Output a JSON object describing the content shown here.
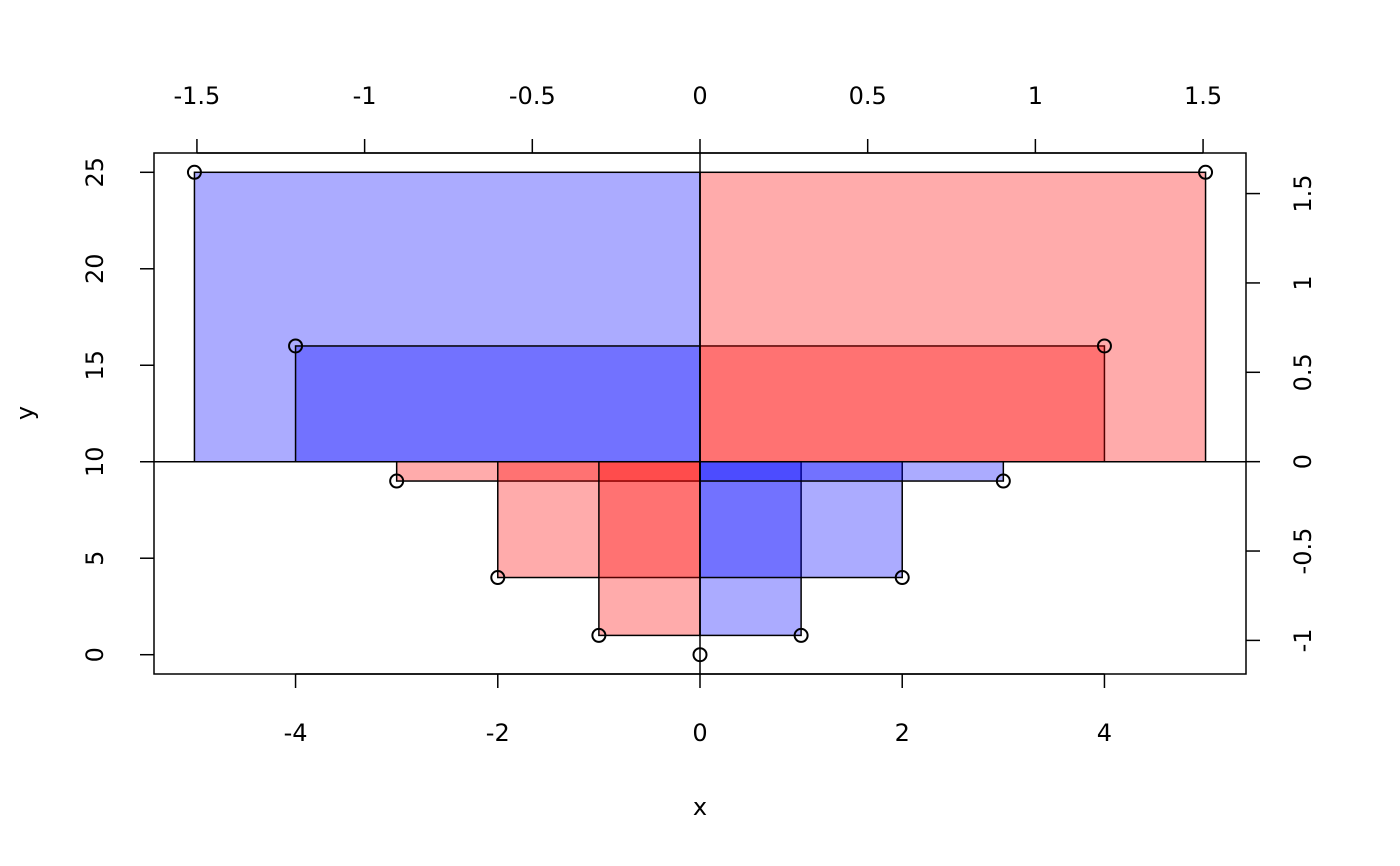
{
  "chart_data": {
    "type": "scatter",
    "x": [
      -5,
      -4,
      -3,
      -2,
      -1,
      0,
      1,
      2,
      3,
      4,
      5
    ],
    "y": [
      25,
      16,
      9,
      4,
      1,
      0,
      1,
      4,
      9,
      16,
      25
    ],
    "xlim": [
      -5.4,
      5.4
    ],
    "ylim": [
      -1,
      26
    ],
    "xticks": [
      -4,
      -2,
      0,
      2,
      4
    ],
    "yticks": [
      0,
      5,
      10,
      15,
      20,
      25
    ],
    "x2lim": [
      -1.628,
      1.628
    ],
    "x2ticks": [
      -1.5,
      -1,
      -0.5,
      0,
      0.5,
      1,
      1.5
    ],
    "y2lim": [
      -1.188,
      1.727
    ],
    "y2ticks": [
      -1,
      -0.5,
      0,
      0.5,
      1,
      1.5
    ],
    "center": [
      0,
      10
    ],
    "positive_color": "rgba(255,0,0,0.33)",
    "negative_color": "rgba(0,0,255,0.33)",
    "xlabel": "x",
    "ylabel": "y"
  }
}
